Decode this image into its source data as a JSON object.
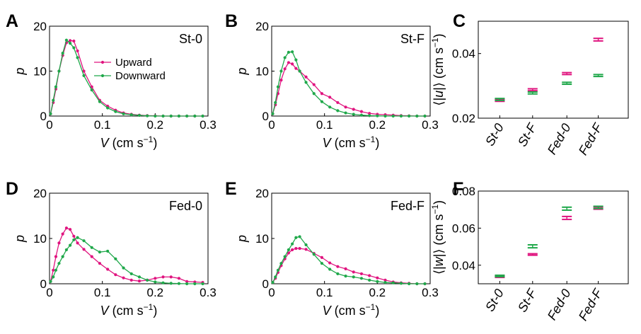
{
  "colors": {
    "upward": "#e0147f",
    "downward": "#1fa84a"
  },
  "chart_data": [
    {
      "id": "A",
      "type": "line",
      "panel_label": "A",
      "condition": "St-0",
      "xlabel": "V (cm s−1)",
      "ylabel": "p",
      "xlim": [
        0,
        0.3
      ],
      "ylim": [
        0,
        20
      ],
      "xticks": [
        0,
        0.1,
        0.2,
        0.3
      ],
      "xtick_labels": [
        "0",
        "0.1",
        "0.2",
        "0.3"
      ],
      "yticks": [
        0,
        10,
        20
      ],
      "ytick_labels": [
        "0",
        "10",
        "20"
      ],
      "legend": {
        "entries": [
          "Upward",
          "Downward"
        ],
        "position": "upper-middle"
      },
      "series": [
        {
          "name": "Upward",
          "color": "#e0147f",
          "x": [
            0.002,
            0.007,
            0.012,
            0.018,
            0.025,
            0.032,
            0.039,
            0.046,
            0.053,
            0.065,
            0.08,
            0.095,
            0.11,
            0.125,
            0.14,
            0.155,
            0.17,
            0.185,
            0.2,
            0.215,
            0.23,
            0.245,
            0.26,
            0.275,
            0.29
          ],
          "y": [
            0.5,
            3,
            6,
            10,
            13.5,
            16.3,
            16.8,
            16.7,
            14.5,
            10,
            6.5,
            3.5,
            2.2,
            1.3,
            0.7,
            0.4,
            0.2,
            0.1,
            0.05,
            0,
            0,
            0,
            0,
            0,
            0
          ]
        },
        {
          "name": "Downward",
          "color": "#1fa84a",
          "x": [
            0.002,
            0.007,
            0.012,
            0.018,
            0.025,
            0.032,
            0.039,
            0.046,
            0.053,
            0.065,
            0.08,
            0.095,
            0.11,
            0.125,
            0.14,
            0.155,
            0.17,
            0.185,
            0.2,
            0.215,
            0.23,
            0.245,
            0.26,
            0.275,
            0.29
          ],
          "y": [
            0.5,
            3.5,
            6.5,
            10,
            14,
            16.9,
            16.2,
            15.2,
            13,
            9,
            5.8,
            3.2,
            1.8,
            1,
            0.5,
            0.3,
            0.15,
            0.05,
            0,
            0,
            0,
            0,
            0,
            0,
            0
          ]
        }
      ]
    },
    {
      "id": "B",
      "type": "line",
      "panel_label": "B",
      "condition": "St-F",
      "xlabel": "V (cm s−1)",
      "ylabel": "p",
      "xlim": [
        0,
        0.3
      ],
      "ylim": [
        0,
        20
      ],
      "xticks": [
        0,
        0.1,
        0.2,
        0.3
      ],
      "xtick_labels": [
        "0",
        "0.1",
        "0.2",
        "0.3"
      ],
      "yticks": [
        0,
        10,
        20
      ],
      "ytick_labels": [
        "0",
        "10",
        "20"
      ],
      "series": [
        {
          "name": "Upward",
          "color": "#e0147f",
          "x": [
            0.002,
            0.007,
            0.012,
            0.018,
            0.025,
            0.032,
            0.039,
            0.046,
            0.053,
            0.065,
            0.08,
            0.095,
            0.11,
            0.125,
            0.14,
            0.155,
            0.17,
            0.185,
            0.2,
            0.215,
            0.23,
            0.245,
            0.26,
            0.275,
            0.29
          ],
          "y": [
            0.5,
            2.5,
            5,
            8,
            10.5,
            11.9,
            11.6,
            10.6,
            10,
            8.7,
            7,
            5,
            4.2,
            3,
            2,
            1.5,
            1,
            0.6,
            0.4,
            0.3,
            0.2,
            0.1,
            0.05,
            0,
            0
          ]
        },
        {
          "name": "Downward",
          "color": "#1fa84a",
          "x": [
            0.002,
            0.007,
            0.012,
            0.018,
            0.025,
            0.032,
            0.039,
            0.046,
            0.053,
            0.065,
            0.08,
            0.095,
            0.11,
            0.125,
            0.14,
            0.155,
            0.17,
            0.185,
            0.2,
            0.215,
            0.23,
            0.245,
            0.26,
            0.275,
            0.29
          ],
          "y": [
            0.5,
            3,
            6.5,
            10,
            13,
            14.2,
            14.3,
            12.5,
            10,
            7.5,
            5,
            3.2,
            2,
            1.2,
            0.7,
            0.4,
            0.2,
            0.1,
            0.05,
            0,
            0,
            0,
            0,
            0,
            0
          ]
        }
      ]
    },
    {
      "id": "D",
      "type": "line",
      "panel_label": "D",
      "condition": "Fed-0",
      "xlabel": "V (cm s−1)",
      "ylabel": "p",
      "xlim": [
        0,
        0.3
      ],
      "ylim": [
        0,
        20
      ],
      "xticks": [
        0,
        0.1,
        0.2,
        0.3
      ],
      "xtick_labels": [
        "0",
        "0.1",
        "0.2",
        "0.3"
      ],
      "yticks": [
        0,
        10,
        20
      ],
      "ytick_labels": [
        "0",
        "10",
        "20"
      ],
      "series": [
        {
          "name": "Upward",
          "color": "#e0147f",
          "x": [
            0.002,
            0.007,
            0.012,
            0.018,
            0.025,
            0.032,
            0.039,
            0.046,
            0.053,
            0.065,
            0.08,
            0.095,
            0.11,
            0.125,
            0.14,
            0.155,
            0.17,
            0.185,
            0.2,
            0.215,
            0.23,
            0.245,
            0.26,
            0.275,
            0.29
          ],
          "y": [
            0.5,
            3,
            6,
            9,
            11,
            12.3,
            12,
            10.5,
            9,
            7.6,
            6,
            4.5,
            3.2,
            2,
            1.3,
            0.8,
            0.6,
            0.8,
            1.2,
            1.5,
            1.5,
            1.2,
            0.5,
            0.4,
            0.3
          ]
        },
        {
          "name": "Downward",
          "color": "#1fa84a",
          "x": [
            0.002,
            0.007,
            0.012,
            0.018,
            0.025,
            0.032,
            0.039,
            0.046,
            0.053,
            0.065,
            0.08,
            0.095,
            0.11,
            0.125,
            0.14,
            0.155,
            0.17,
            0.185,
            0.2,
            0.215,
            0.23,
            0.245,
            0.26,
            0.275,
            0.29
          ],
          "y": [
            0.5,
            1.5,
            3,
            4.5,
            6,
            7.5,
            8.5,
            9.7,
            10.2,
            9.5,
            8,
            7,
            7.2,
            5.5,
            3.5,
            2.2,
            1.5,
            0.8,
            0.4,
            0.2,
            0.1,
            0.05,
            0,
            0,
            0
          ]
        }
      ]
    },
    {
      "id": "E",
      "type": "line",
      "panel_label": "E",
      "condition": "Fed-F",
      "xlabel": "V (cm s−1)",
      "ylabel": "p",
      "xlim": [
        0,
        0.3
      ],
      "ylim": [
        0,
        20
      ],
      "xticks": [
        0,
        0.1,
        0.2,
        0.3
      ],
      "xtick_labels": [
        "0",
        "0.1",
        "0.2",
        "0.3"
      ],
      "yticks": [
        0,
        10,
        20
      ],
      "ytick_labels": [
        "0",
        "10",
        "20"
      ],
      "series": [
        {
          "name": "Upward",
          "color": "#e0147f",
          "x": [
            0.002,
            0.007,
            0.012,
            0.018,
            0.025,
            0.032,
            0.039,
            0.046,
            0.053,
            0.065,
            0.08,
            0.095,
            0.11,
            0.125,
            0.14,
            0.155,
            0.17,
            0.185,
            0.2,
            0.215,
            0.23,
            0.245,
            0.26,
            0.275,
            0.29
          ],
          "y": [
            0.3,
            1.2,
            2.5,
            4,
            5.5,
            6.8,
            7.5,
            7.8,
            7.8,
            7.6,
            6.7,
            5.8,
            4.6,
            3.8,
            3.3,
            2.6,
            2.2,
            1.8,
            1.3,
            0.8,
            0.4,
            0.2,
            0.1,
            0,
            0
          ]
        },
        {
          "name": "Downward",
          "color": "#1fa84a",
          "x": [
            0.002,
            0.007,
            0.012,
            0.018,
            0.025,
            0.032,
            0.039,
            0.046,
            0.053,
            0.065,
            0.08,
            0.095,
            0.11,
            0.125,
            0.14,
            0.155,
            0.17,
            0.185,
            0.2,
            0.215,
            0.23,
            0.245,
            0.26,
            0.275,
            0.29
          ],
          "y": [
            0.3,
            1.5,
            3,
            4.5,
            6,
            7.5,
            8.8,
            10.2,
            10.4,
            8.6,
            6.5,
            4.5,
            3.2,
            2.2,
            1.7,
            1.5,
            1.2,
            0.8,
            0.5,
            0.3,
            0.2,
            0.1,
            0,
            0,
            0
          ]
        }
      ]
    },
    {
      "id": "C",
      "type": "scatter",
      "panel_label": "C",
      "ylabel": "⟨|u|⟩ (cm s−1)",
      "categories": [
        "St-0",
        "St-F",
        "Fed-0",
        "Fed-F"
      ],
      "ylim": [
        0.02,
        0.05
      ],
      "yticks": [
        0.02,
        0.04
      ],
      "ytick_labels": [
        "0.02",
        "0.04"
      ],
      "series": [
        {
          "name": "Upward",
          "color": "#e0147f",
          "values": [
            0.0255,
            0.0288,
            0.0338,
            0.0443
          ],
          "errors": [
            0.0003,
            0.0003,
            0.0003,
            0.0004
          ]
        },
        {
          "name": "Downward",
          "color": "#1fa84a",
          "values": [
            0.0258,
            0.0278,
            0.0308,
            0.0332
          ],
          "errors": [
            0.0003,
            0.0003,
            0.0003,
            0.0003
          ]
        }
      ]
    },
    {
      "id": "F",
      "type": "scatter",
      "panel_label": "F",
      "ylabel": "⟨|w|⟩ (cm s−1)",
      "categories": [
        "St-0",
        "St-F",
        "Fed-0",
        "Fed-F"
      ],
      "ylim": [
        0.03,
        0.08
      ],
      "yticks": [
        0.04,
        0.06,
        0.08
      ],
      "ytick_labels": [
        "0.04",
        "0.06",
        "0.08"
      ],
      "series": [
        {
          "name": "Upward",
          "color": "#e0147f",
          "values": [
            0.0338,
            0.0458,
            0.0655,
            0.0708
          ],
          "errors": [
            0.0004,
            0.0004,
            0.0008,
            0.0006
          ]
        },
        {
          "name": "Downward",
          "color": "#1fa84a",
          "values": [
            0.0342,
            0.0502,
            0.0705,
            0.0712
          ],
          "errors": [
            0.0004,
            0.0008,
            0.0008,
            0.0006
          ]
        }
      ]
    }
  ]
}
